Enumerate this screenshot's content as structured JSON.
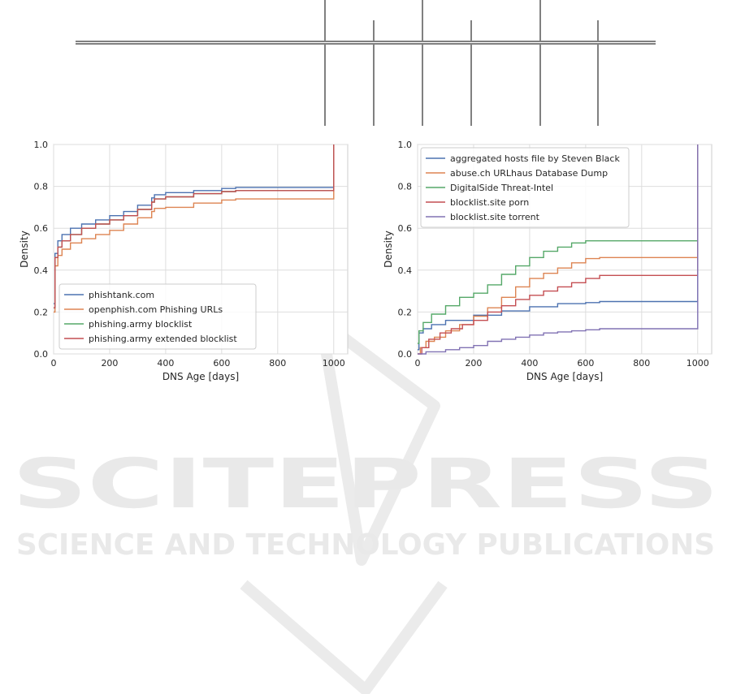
{
  "page": {
    "background": "#ffffff"
  },
  "watermark": {
    "line1": "SCITEPRESS",
    "line2": "SCIENCE AND TECHNOLOGY PUBLICATIONS",
    "color": "#e9e9e9"
  },
  "chart_data": [
    {
      "type": "line",
      "style": "step (cumulative distribution)",
      "title": "",
      "xlabel": "DNS Age [days]",
      "ylabel": "Density",
      "xlim": [
        0,
        1050
      ],
      "ylim": [
        0,
        1.0
      ],
      "xticks": [
        "0",
        "200",
        "400",
        "600",
        "800",
        "1000"
      ],
      "yticks": [
        "0.0",
        "0.2",
        "0.4",
        "0.6",
        "0.8",
        "1.0"
      ],
      "grid": true,
      "legend_position": "lower-center",
      "series": [
        {
          "name": "phishtank.com",
          "color": "#4c72b0",
          "x": [
            0,
            5,
            15,
            30,
            60,
            100,
            150,
            200,
            250,
            300,
            350,
            360,
            400,
            500,
            600,
            650,
            700,
            800,
            900,
            999,
            1000,
            1000
          ],
          "y": [
            0.24,
            0.48,
            0.54,
            0.57,
            0.6,
            0.62,
            0.64,
            0.66,
            0.68,
            0.71,
            0.745,
            0.76,
            0.77,
            0.78,
            0.79,
            0.795,
            0.795,
            0.795,
            0.795,
            0.795,
            0.795,
            1.0
          ]
        },
        {
          "name": "openphish.com Phishing URLs",
          "color": "#dd8452",
          "x": [
            0,
            5,
            15,
            30,
            60,
            100,
            150,
            200,
            250,
            300,
            350,
            360,
            400,
            500,
            600,
            650,
            700,
            800,
            900,
            999,
            1000,
            1000
          ],
          "y": [
            0.2,
            0.42,
            0.47,
            0.5,
            0.53,
            0.55,
            0.57,
            0.59,
            0.62,
            0.65,
            0.68,
            0.695,
            0.7,
            0.72,
            0.735,
            0.74,
            0.74,
            0.74,
            0.74,
            0.74,
            0.74,
            1.0
          ]
        },
        {
          "name": "phishing.army blocklist",
          "color": "#55a868",
          "x": [
            0,
            5,
            15,
            30,
            60,
            100,
            150,
            200,
            250,
            300,
            350,
            360,
            400,
            500,
            600,
            650,
            700,
            800,
            900,
            999,
            1000,
            1000
          ],
          "y": [
            0.22,
            0.46,
            0.51,
            0.54,
            0.57,
            0.6,
            0.62,
            0.64,
            0.66,
            0.69,
            0.725,
            0.74,
            0.75,
            0.765,
            0.775,
            0.78,
            0.78,
            0.78,
            0.78,
            0.78,
            0.78,
            1.0
          ]
        },
        {
          "name": "phishing.army extended blocklist",
          "color": "#c44e52",
          "x": [
            0,
            5,
            15,
            30,
            60,
            100,
            150,
            200,
            250,
            300,
            350,
            360,
            400,
            500,
            600,
            650,
            700,
            800,
            900,
            999,
            1000,
            1000
          ],
          "y": [
            0.22,
            0.46,
            0.51,
            0.54,
            0.57,
            0.6,
            0.62,
            0.64,
            0.66,
            0.69,
            0.725,
            0.74,
            0.75,
            0.765,
            0.775,
            0.78,
            0.78,
            0.78,
            0.78,
            0.78,
            0.78,
            1.0
          ]
        }
      ]
    },
    {
      "type": "line",
      "style": "step (cumulative distribution)",
      "title": "",
      "xlabel": "DNS Age [days]",
      "ylabel": "Density",
      "xlim": [
        0,
        1050
      ],
      "ylim": [
        0,
        1.0
      ],
      "xticks": [
        "0",
        "200",
        "400",
        "600",
        "800",
        "1000"
      ],
      "yticks": [
        "0.0",
        "0.2",
        "0.4",
        "0.6",
        "0.8",
        "1.0"
      ],
      "grid": true,
      "legend_position": "upper-left",
      "series": [
        {
          "name": "aggregated hosts file by Steven Black",
          "color": "#4c72b0",
          "x": [
            0,
            5,
            20,
            50,
            100,
            200,
            300,
            400,
            500,
            600,
            650,
            700,
            800,
            999,
            1000,
            1000
          ],
          "y": [
            0.02,
            0.1,
            0.12,
            0.14,
            0.16,
            0.185,
            0.205,
            0.225,
            0.24,
            0.245,
            0.25,
            0.25,
            0.25,
            0.25,
            0.25,
            1.0
          ]
        },
        {
          "name": "abuse.ch URLhaus Database Dump",
          "color": "#dd8452",
          "x": [
            0,
            10,
            30,
            60,
            100,
            150,
            200,
            250,
            300,
            350,
            400,
            450,
            500,
            550,
            600,
            650,
            700,
            800,
            999,
            1000,
            1000
          ],
          "y": [
            0.0,
            0.03,
            0.06,
            0.08,
            0.11,
            0.14,
            0.18,
            0.22,
            0.27,
            0.32,
            0.36,
            0.385,
            0.41,
            0.435,
            0.455,
            0.46,
            0.46,
            0.46,
            0.46,
            0.46,
            1.0
          ]
        },
        {
          "name": "DigitalSide Threat-Intel",
          "color": "#55a868",
          "x": [
            0,
            5,
            20,
            50,
            100,
            150,
            200,
            250,
            300,
            350,
            400,
            450,
            500,
            550,
            600,
            650,
            700,
            800,
            999,
            1000,
            1000
          ],
          "y": [
            0.05,
            0.11,
            0.15,
            0.19,
            0.23,
            0.27,
            0.29,
            0.33,
            0.38,
            0.42,
            0.46,
            0.49,
            0.51,
            0.53,
            0.54,
            0.54,
            0.54,
            0.54,
            0.54,
            0.54,
            1.0
          ]
        },
        {
          "name": "blocklist.site porn",
          "color": "#c44e52",
          "x": [
            0,
            15,
            40,
            80,
            120,
            160,
            200,
            250,
            300,
            350,
            400,
            450,
            500,
            550,
            600,
            650,
            700,
            800,
            999,
            1000,
            1000
          ],
          "y": [
            0.0,
            0.03,
            0.07,
            0.1,
            0.12,
            0.14,
            0.16,
            0.2,
            0.23,
            0.26,
            0.28,
            0.3,
            0.32,
            0.34,
            0.36,
            0.375,
            0.375,
            0.375,
            0.375,
            0.375,
            1.0
          ]
        },
        {
          "name": "blocklist.site torrent",
          "color": "#8172b3",
          "x": [
            0,
            30,
            100,
            150,
            200,
            250,
            300,
            350,
            400,
            450,
            500,
            550,
            600,
            650,
            700,
            800,
            999,
            1000,
            1000
          ],
          "y": [
            0.0,
            0.01,
            0.02,
            0.03,
            0.04,
            0.06,
            0.07,
            0.08,
            0.09,
            0.1,
            0.105,
            0.11,
            0.115,
            0.12,
            0.12,
            0.12,
            0.12,
            0.12,
            1.0
          ]
        }
      ]
    }
  ]
}
